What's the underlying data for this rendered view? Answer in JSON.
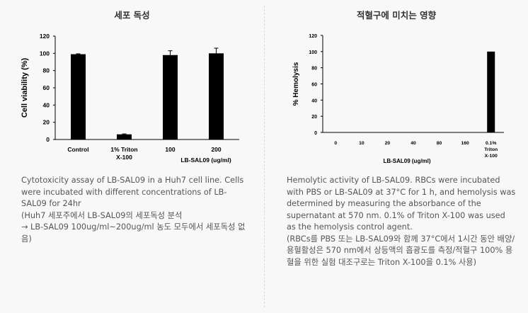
{
  "left_panel": {
    "title": "세포 독성",
    "caption": "Cytotoxicity assay of LB-SAL09 in a Huh7 cell line. Cells were incubated with different concentrations of LB-SAL09 for 24hr\n(Huh7 세포주에서 LB-SAL09의 세포독성 분석\n→ LB-SAL09 100ug/ml~200ug/ml 농도 모두에서 세포독성 없음)"
  },
  "right_panel": {
    "title": "적혈구에 미치는 영향",
    "caption": "Hemolytic activity of LB-SAL09. RBCs were incubated with PBS or LB-SAL09 at 37°C for 1 h, and hemolysis was determined by measuring the absorbance of the supernatant at 570 nm. 0.1% of Triton X-100 was used as the hemolysis control agent.\n(RBCs를 PBS 또는 LB-SAL09와 함께 37°C에서 1시간 동안 배양/ 용혈활성은 570 nm에서 상등액의 흡광도를 측정/적혈구 100% 용혈을 위한 실험 대조구로는 Triton X-100을 0.1% 사용)"
  },
  "chart_data": [
    {
      "type": "bar",
      "ylabel": "Cell viability (%)",
      "xlabel": "LB-SAL09 (ug/ml)",
      "categories": [
        "Control",
        "1% Triton X-100",
        "100",
        "200"
      ],
      "values": [
        99,
        6,
        98,
        100
      ],
      "errors": [
        0.5,
        0.5,
        5,
        6
      ],
      "ylim": [
        0,
        120
      ],
      "yticks": [
        0,
        20,
        40,
        60,
        80,
        100,
        120
      ],
      "colors": {
        "bar": "#000000"
      }
    },
    {
      "type": "bar",
      "ylabel": "% Hemolysis",
      "xlabel": "LB-SAL09 (ug/ml)",
      "categories": [
        "0",
        "10",
        "20",
        "40",
        "80",
        "160",
        "0.1% Triton X-100"
      ],
      "values": [
        0,
        0,
        0,
        0,
        0,
        0,
        100
      ],
      "ylim": [
        0,
        120
      ],
      "yticks": [
        0,
        20,
        40,
        60,
        80,
        100,
        120
      ],
      "colors": {
        "bar": "#000000"
      }
    }
  ]
}
